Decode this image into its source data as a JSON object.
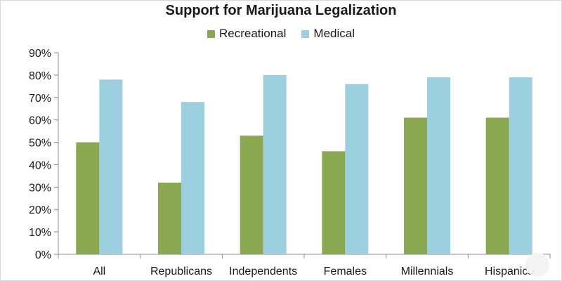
{
  "chart_data": {
    "type": "bar",
    "title": "Support for Marijuana Legalization",
    "categories": [
      "All",
      "Republicans",
      "Independents",
      "Females",
      "Millennials",
      "Hispanics"
    ],
    "series": [
      {
        "name": "Recreational",
        "color": "#8aa84f",
        "values": [
          50,
          32,
          53,
          46,
          61,
          61
        ]
      },
      {
        "name": "Medical",
        "color": "#9ccfe0",
        "values": [
          78,
          68,
          80,
          76,
          79,
          79
        ]
      }
    ],
    "y_ticks": [
      "0%",
      "10%",
      "20%",
      "30%",
      "40%",
      "50%",
      "60%",
      "70%",
      "80%",
      "90%"
    ],
    "ylim": [
      0,
      90
    ],
    "xlabel": "",
    "ylabel": "",
    "legend_position": "top-center",
    "grid": false
  }
}
